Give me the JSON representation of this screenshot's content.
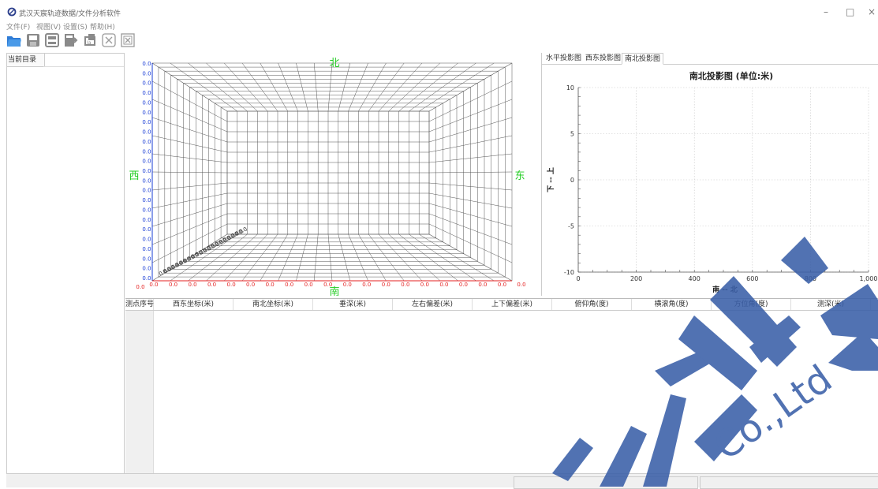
{
  "window": {
    "title": "武汉天宸轨迹数据/文件分析软件",
    "minimize": "–",
    "maximize": "□",
    "close": "×"
  },
  "menu": {
    "file": "文件(F)",
    "view": "视图(V)",
    "settings": "设置(S)",
    "help": "帮助(H)"
  },
  "toolbar": {
    "icons": [
      "open-folder-icon",
      "save-icon",
      "save-as-icon",
      "export-icon",
      "import-icon",
      "close-x-icon",
      "close-all-icon"
    ]
  },
  "left_panel": {
    "header": "当前目录"
  },
  "view3d": {
    "north": "北",
    "south": "南",
    "east": "东",
    "west": "西",
    "tick": "0.0",
    "label_color_dir": "#22cc22",
    "tick_color_y": "#1a3dd6",
    "tick_color_x": "#e52222"
  },
  "right_panel": {
    "tabs": [
      "水平投影图",
      "西东投影图",
      "南北投影图"
    ],
    "active_tab": 2,
    "chart_title": "南北投影图 (单位:米)",
    "xlabel": "南 -- 北",
    "ylabel": "下 -- 上",
    "x_ticks": [
      "0",
      "200",
      "400",
      "600",
      "800",
      "1,000"
    ],
    "y_ticks": [
      "10",
      "5",
      "0",
      "-5",
      "-10"
    ]
  },
  "chart_data": {
    "type": "line",
    "title": "南北投影图 (单位:米)",
    "xlabel": "南 -- 北",
    "ylabel": "下 -- 上",
    "xlim": [
      0,
      1000
    ],
    "ylim": [
      -10,
      10
    ],
    "grid": true,
    "series": []
  },
  "table": {
    "columns": [
      "测点序号",
      "西东坐标(米)",
      "南北坐标(米)",
      "垂深(米)",
      "左右偏差(米)",
      "上下偏差(米)",
      "俯仰角(度)",
      "横滚角(度)",
      "方位角(度)",
      "测深(米)"
    ],
    "rows": []
  },
  "watermark": {
    "color": "#3a5fa8"
  }
}
